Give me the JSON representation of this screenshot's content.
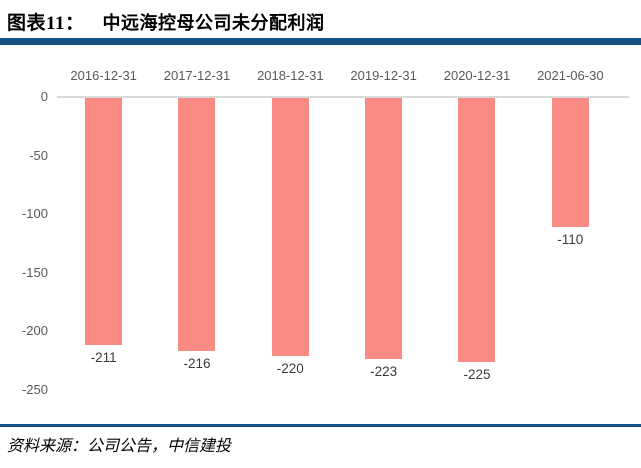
{
  "header": {
    "label": "图表11：",
    "title": "中远海控母公司未分配利润"
  },
  "footer": {
    "source": "资料来源：公司公告，中信建投"
  },
  "colors": {
    "accent_navy": "#155082",
    "bar": "#f98a84",
    "axis_line": "#d9d9d9",
    "tick_text": "#595959",
    "value_text": "#3a3a3a"
  },
  "chart_data": {
    "type": "bar",
    "title": "中远海控母公司未分配利润",
    "categories": [
      "2016-12-31",
      "2017-12-31",
      "2018-12-31",
      "2019-12-31",
      "2020-12-31",
      "2021-06-30"
    ],
    "values": [
      -211,
      -216,
      -220,
      -223,
      -225,
      -110
    ],
    "value_labels": [
      "-211",
      "-216",
      "-220",
      "-223",
      "-225",
      "-110"
    ],
    "yticks": [
      0,
      -50,
      -100,
      -150,
      -200,
      -250
    ],
    "ylim": [
      0,
      -250
    ],
    "xlabel": "",
    "ylabel": "",
    "grid": "zero-line-only",
    "legend": "none",
    "x_axis_position": "top",
    "bar_label_position": "below-bar"
  }
}
